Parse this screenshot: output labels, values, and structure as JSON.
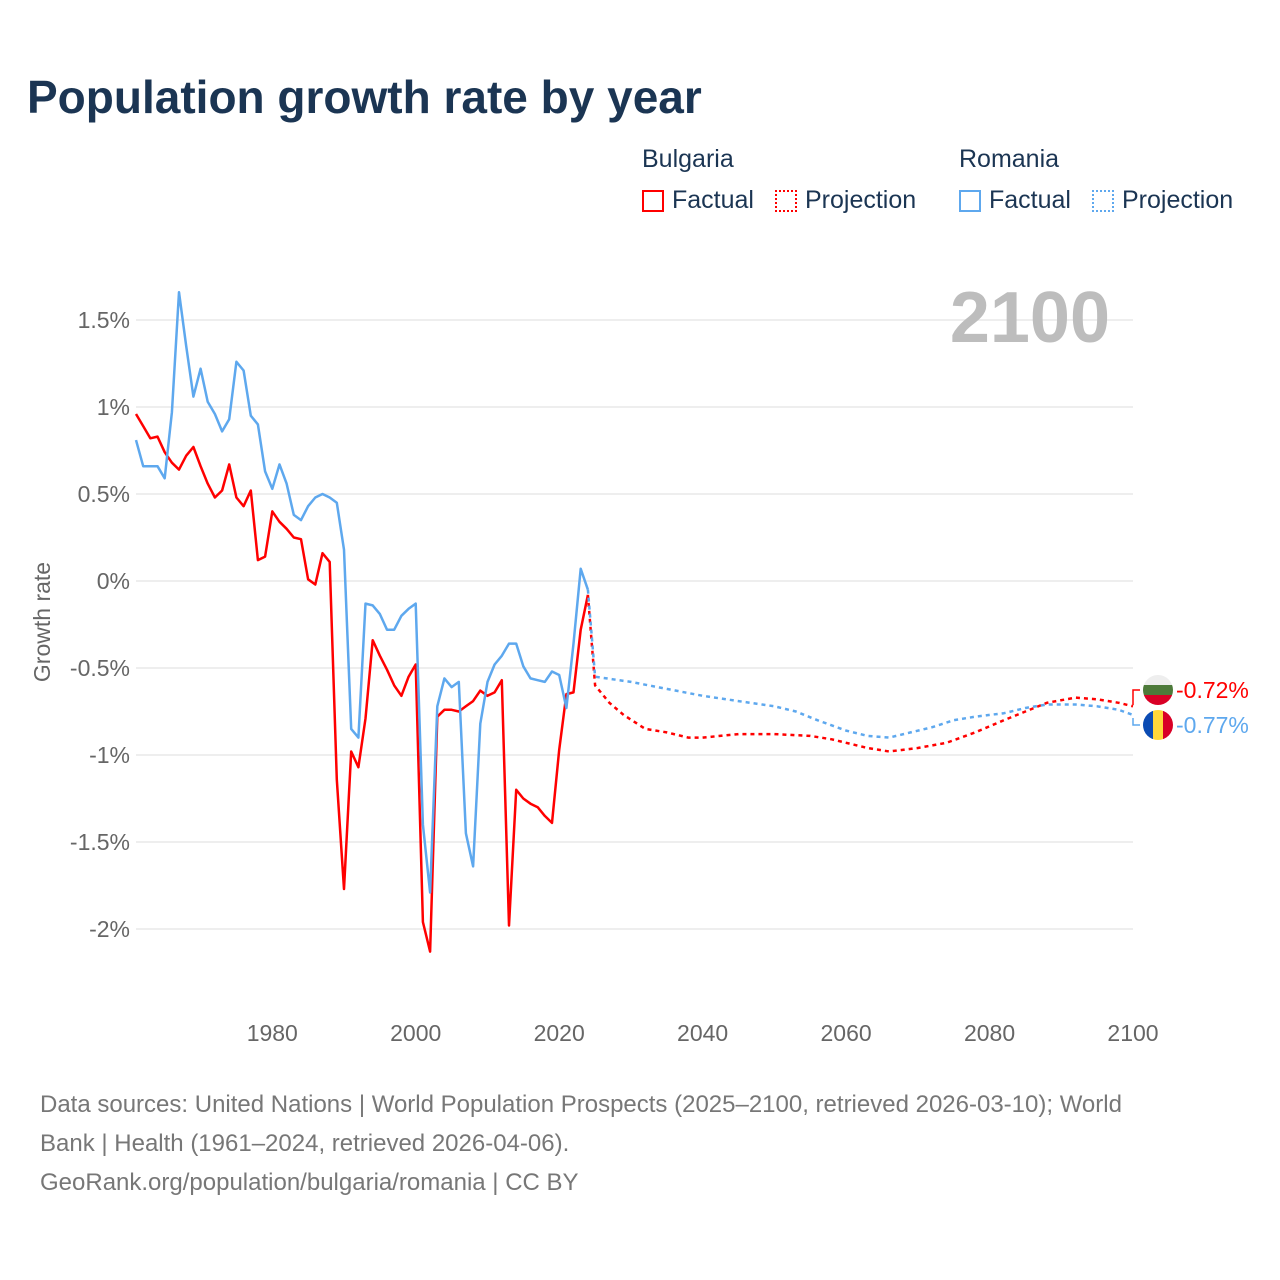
{
  "title": "Population growth rate by year",
  "legend": {
    "groups": [
      {
        "name": "Bulgaria",
        "factual": "Factual",
        "projection": "Projection",
        "color": "#ff0000"
      },
      {
        "name": "Romania",
        "factual": "Factual",
        "projection": "Projection",
        "color": "#5ea8ee"
      }
    ]
  },
  "year_label": "2100",
  "footer": {
    "line1": "Data sources: United Nations | World Population Prospects (2025–2100, retrieved 2026-03-10); World",
    "line2": "Bank | Health (1961–2024, retrieved 2026-04-06).",
    "line3": "GeoRank.org/population/bulgaria/romania | CC BY"
  },
  "chart_data": {
    "type": "line",
    "title": "Population growth rate by year",
    "ylabel": "Growth rate",
    "xlabel": "",
    "xlim": [
      1961,
      2100
    ],
    "ylim": [
      -2.3,
      1.75
    ],
    "grid": true,
    "xticks": [
      1980,
      2000,
      2020,
      2040,
      2060,
      2080,
      2100
    ],
    "xtick_labels": [
      "1980",
      "2000",
      "2020",
      "2040",
      "2060",
      "2080",
      "2100"
    ],
    "yticks": [
      1.5,
      1,
      0.5,
      0,
      -0.5,
      -1,
      -1.5,
      -2
    ],
    "ytick_labels": [
      "1.5%",
      "1%",
      "0.5%",
      "0%",
      "-0.5%",
      "-1%",
      "-1.5%",
      "-2%"
    ],
    "legend_position": "top-right",
    "end_labels": [
      {
        "series": "Bulgaria",
        "text": "-0.72%",
        "color": "#ff0000"
      },
      {
        "series": "Romania",
        "text": "-0.77%",
        "color": "#5ea8ee"
      }
    ],
    "series": [
      {
        "name": "Bulgaria Factual",
        "color": "#ff0000",
        "dashed": false,
        "x_start": 1961,
        "values": [
          0.96,
          0.89,
          0.82,
          0.83,
          0.74,
          0.68,
          0.64,
          0.72,
          0.77,
          0.66,
          0.56,
          0.48,
          0.52,
          0.67,
          0.48,
          0.43,
          0.52,
          0.12,
          0.14,
          0.4,
          0.34,
          0.3,
          0.25,
          0.24,
          0.01,
          -0.02,
          0.16,
          0.11,
          -1.14,
          -1.77,
          -0.98,
          -1.07,
          -0.79,
          -0.34,
          -0.43,
          -0.51,
          -0.6,
          -0.66,
          -0.55,
          -0.48,
          -1.96,
          -2.13,
          -0.78,
          -0.74,
          -0.74,
          -0.75,
          -0.72,
          -0.69,
          -0.63,
          -0.66,
          -0.64,
          -0.57,
          -1.98,
          -1.2,
          -1.25,
          -1.28,
          -1.3,
          -1.35,
          -1.39,
          -0.97,
          -0.65,
          -0.64,
          -0.28,
          -0.08
        ]
      },
      {
        "name": "Romania Factual",
        "color": "#5ea8ee",
        "dashed": false,
        "x_start": 1961,
        "values": [
          0.81,
          0.66,
          0.66,
          0.66,
          0.59,
          0.97,
          1.66,
          1.35,
          1.06,
          1.22,
          1.03,
          0.96,
          0.86,
          0.93,
          1.26,
          1.21,
          0.95,
          0.9,
          0.63,
          0.53,
          0.67,
          0.56,
          0.38,
          0.35,
          0.43,
          0.48,
          0.5,
          0.48,
          0.45,
          0.18,
          -0.85,
          -0.9,
          -0.13,
          -0.14,
          -0.19,
          -0.28,
          -0.28,
          -0.2,
          -0.16,
          -0.13,
          -1.4,
          -1.79,
          -0.72,
          -0.56,
          -0.61,
          -0.58,
          -1.45,
          -1.64,
          -0.82,
          -0.58,
          -0.48,
          -0.43,
          -0.36,
          -0.36,
          -0.49,
          -0.56,
          -0.57,
          -0.58,
          -0.52,
          -0.54,
          -0.73,
          -0.36,
          0.07,
          -0.05
        ]
      },
      {
        "name": "Bulgaria Projection",
        "color": "#ff0000",
        "dashed": true,
        "x": [
          2024,
          2025,
          2027,
          2029,
          2032,
          2035,
          2038,
          2040,
          2045,
          2050,
          2055,
          2058,
          2060,
          2063,
          2066,
          2070,
          2074,
          2078,
          2082,
          2085,
          2088,
          2092,
          2095,
          2098,
          2100
        ],
        "y": [
          -0.08,
          -0.6,
          -0.7,
          -0.77,
          -0.85,
          -0.87,
          -0.9,
          -0.9,
          -0.88,
          -0.88,
          -0.89,
          -0.91,
          -0.93,
          -0.96,
          -0.98,
          -0.96,
          -0.93,
          -0.87,
          -0.8,
          -0.75,
          -0.7,
          -0.67,
          -0.68,
          -0.7,
          -0.72
        ]
      },
      {
        "name": "Romania Projection",
        "color": "#5ea8ee",
        "dashed": true,
        "x": [
          2024,
          2025,
          2030,
          2035,
          2040,
          2045,
          2050,
          2053,
          2056,
          2060,
          2063,
          2066,
          2069,
          2072,
          2075,
          2078,
          2082,
          2085,
          2088,
          2092,
          2095,
          2098,
          2100
        ],
        "y": [
          -0.05,
          -0.55,
          -0.58,
          -0.62,
          -0.66,
          -0.69,
          -0.72,
          -0.75,
          -0.8,
          -0.86,
          -0.89,
          -0.9,
          -0.87,
          -0.84,
          -0.8,
          -0.78,
          -0.76,
          -0.73,
          -0.71,
          -0.71,
          -0.72,
          -0.74,
          -0.77
        ]
      }
    ]
  }
}
